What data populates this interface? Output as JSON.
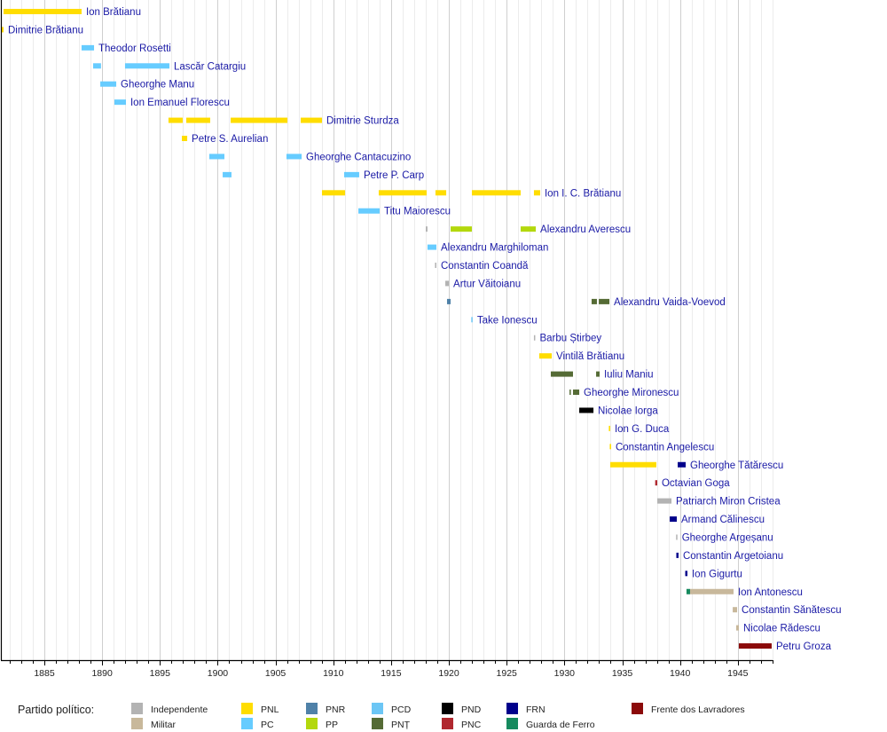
{
  "chart_data": {
    "type": "bar",
    "orientation": "horizontal-timeline",
    "title": "",
    "xlabel": "",
    "ylabel": "",
    "xlim": [
      1881.3,
      1948
    ],
    "xticks": [
      1885,
      1890,
      1895,
      1900,
      1905,
      1910,
      1915,
      1920,
      1925,
      1930,
      1935,
      1940,
      1945
    ],
    "xtick_labels": [
      "1885",
      "1890",
      "1895",
      "1900",
      "1905",
      "1910",
      "1915",
      "1920",
      "1925",
      "1930",
      "1935",
      "1940",
      "1945"
    ],
    "minor_ticks_every_years": 1,
    "grid": true,
    "label_color": "#1a1aa6",
    "legend": {
      "placement": "bottom",
      "title": "Partido político:",
      "entries": [
        {
          "name": "Independente",
          "color": "#b3b3b3"
        },
        {
          "name": "Militar",
          "color": "#c8b89b"
        },
        {
          "name": "PNL",
          "color": "#ffdd00"
        },
        {
          "name": "PC",
          "color": "#66ccff"
        },
        {
          "name": "PNR",
          "color": "#4f81a8"
        },
        {
          "name": "PP",
          "color": "#b3d80d"
        },
        {
          "name": "PCD",
          "color": "#6cc6f5"
        },
        {
          "name": "PNȚ",
          "color": "#556b35"
        },
        {
          "name": "PND",
          "color": "#000000"
        },
        {
          "name": "PNC",
          "color": "#b0282f"
        },
        {
          "name": "FRN",
          "color": "#00008b"
        },
        {
          "name": "Guarda de Ferro",
          "color": "#168a5e"
        },
        {
          "name": "Frente dos Lavradores",
          "color": "#8b0a0a"
        }
      ]
    },
    "rows": [
      {
        "name": "Ion Brătianu",
        "terms": [
          {
            "start": 1881.47,
            "end": 1888.22,
            "party": "PNL"
          }
        ]
      },
      {
        "name": "Dimitrie Brătianu",
        "terms": [
          {
            "start": 1881.3,
            "end": 1881.47,
            "party": "PNL"
          }
        ]
      },
      {
        "name": "Theodor Rosetti",
        "terms": [
          {
            "start": 1888.22,
            "end": 1889.3,
            "party": "PC"
          }
        ]
      },
      {
        "name": "Lascăr Catargiu",
        "terms": [
          {
            "start": 1889.22,
            "end": 1889.9,
            "party": "PC"
          },
          {
            "start": 1891.98,
            "end": 1895.82,
            "party": "PC"
          }
        ]
      },
      {
        "name": "Gheorghe Manu",
        "terms": [
          {
            "start": 1889.84,
            "end": 1891.22,
            "party": "PC"
          }
        ]
      },
      {
        "name": "Ion Emanuel Florescu",
        "terms": [
          {
            "start": 1891.06,
            "end": 1892.06,
            "party": "PC"
          }
        ]
      },
      {
        "name": "Dimitrie Sturdza",
        "terms": [
          {
            "start": 1895.74,
            "end": 1896.97,
            "party": "PNL"
          },
          {
            "start": 1897.28,
            "end": 1899.35,
            "party": "PNL"
          },
          {
            "start": 1901.12,
            "end": 1906.03,
            "party": "PNL"
          },
          {
            "start": 1907.18,
            "end": 1909.02,
            "party": "PNL"
          }
        ]
      },
      {
        "name": "Petre S. Aurelian",
        "terms": [
          {
            "start": 1896.9,
            "end": 1897.36,
            "party": "PNL"
          }
        ]
      },
      {
        "name": "Gheorghe Cantacuzino",
        "terms": [
          {
            "start": 1899.27,
            "end": 1900.58,
            "party": "PC"
          },
          {
            "start": 1905.95,
            "end": 1907.26,
            "party": "PC"
          }
        ]
      },
      {
        "name": "Petre P. Carp",
        "terms": [
          {
            "start": 1900.43,
            "end": 1901.19,
            "party": "PC"
          },
          {
            "start": 1910.94,
            "end": 1912.24,
            "party": "PC"
          }
        ]
      },
      {
        "name": "Ion I. C. Brătianu",
        "terms": [
          {
            "start": 1909.02,
            "end": 1911.02,
            "party": "PNL"
          },
          {
            "start": 1913.93,
            "end": 1918.08,
            "party": "PNL"
          },
          {
            "start": 1918.84,
            "end": 1919.77,
            "party": "PNL"
          },
          {
            "start": 1921.99,
            "end": 1926.21,
            "party": "PNL"
          },
          {
            "start": 1927.36,
            "end": 1927.9,
            "party": "PNL"
          }
        ]
      },
      {
        "name": "Titu Maiorescu",
        "terms": [
          {
            "start": 1912.17,
            "end": 1914.01,
            "party": "PC"
          }
        ]
      },
      {
        "name": "Alexandru Averescu",
        "terms": [
          {
            "start": 1918.0,
            "end": 1918.15,
            "party": "Independente"
          },
          {
            "start": 1920.15,
            "end": 1921.99,
            "party": "PP"
          },
          {
            "start": 1926.21,
            "end": 1927.52,
            "party": "PP"
          }
        ]
      },
      {
        "name": "Alexandru Marghiloman",
        "terms": [
          {
            "start": 1918.15,
            "end": 1918.92,
            "party": "PC"
          }
        ]
      },
      {
        "name": "Constantin Coandă",
        "terms": [
          {
            "start": 1918.8,
            "end": 1918.92,
            "party": "Independente"
          }
        ]
      },
      {
        "name": "Artur Văitoianu",
        "terms": [
          {
            "start": 1919.69,
            "end": 1920.0,
            "party": "Independente"
          }
        ]
      },
      {
        "name": "Alexandru Vaida-Voevod",
        "terms": [
          {
            "start": 1919.84,
            "end": 1920.15,
            "party": "PNR"
          },
          {
            "start": 1932.35,
            "end": 1932.81,
            "party": "PNȚ"
          },
          {
            "start": 1932.97,
            "end": 1933.89,
            "party": "PNȚ"
          }
        ]
      },
      {
        "name": "Take Ionescu",
        "terms": [
          {
            "start": 1921.94,
            "end": 1922.05,
            "party": "PCD"
          }
        ]
      },
      {
        "name": "Barbu Știrbey",
        "terms": [
          {
            "start": 1927.36,
            "end": 1927.44,
            "party": "Independente"
          }
        ]
      },
      {
        "name": "Vintilă Brătianu",
        "terms": [
          {
            "start": 1927.82,
            "end": 1928.9,
            "party": "PNL"
          }
        ]
      },
      {
        "name": "Iuliu Maniu",
        "terms": [
          {
            "start": 1928.82,
            "end": 1930.74,
            "party": "PNȚ"
          },
          {
            "start": 1932.74,
            "end": 1933.04,
            "party": "PNȚ"
          }
        ]
      },
      {
        "name": "Gheorghe Mironescu",
        "terms": [
          {
            "start": 1930.44,
            "end": 1930.51,
            "party": "PNȚ"
          },
          {
            "start": 1930.74,
            "end": 1931.28,
            "party": "PNȚ"
          }
        ]
      },
      {
        "name": "Nicolae Iorga",
        "terms": [
          {
            "start": 1931.28,
            "end": 1932.51,
            "party": "PND"
          }
        ]
      },
      {
        "name": "Ion G. Duca",
        "terms": [
          {
            "start": 1933.84,
            "end": 1933.96,
            "party": "PNL"
          }
        ]
      },
      {
        "name": "Constantin Angelescu",
        "terms": [
          {
            "start": 1933.92,
            "end": 1934.04,
            "party": "PNL"
          }
        ]
      },
      {
        "name": "Gheorghe Tătărescu",
        "terms": [
          {
            "start": 1933.96,
            "end": 1937.95,
            "party": "PNL"
          },
          {
            "start": 1939.8,
            "end": 1940.49,
            "party": "FRN"
          }
        ]
      },
      {
        "name": "Octavian Goga",
        "terms": [
          {
            "start": 1937.85,
            "end": 1938.03,
            "party": "PNC"
          }
        ]
      },
      {
        "name": "Patriarch Miron Cristea",
        "terms": [
          {
            "start": 1938.03,
            "end": 1939.26,
            "party": "Independente"
          }
        ]
      },
      {
        "name": "Armand Călinescu",
        "terms": [
          {
            "start": 1939.11,
            "end": 1939.72,
            "party": "FRN"
          }
        ]
      },
      {
        "name": "Gheorghe Argeșanu",
        "terms": [
          {
            "start": 1939.66,
            "end": 1939.72,
            "party": "Independente"
          }
        ]
      },
      {
        "name": "Constantin Argetoianu",
        "terms": [
          {
            "start": 1939.68,
            "end": 1939.87,
            "party": "FRN"
          }
        ]
      },
      {
        "name": "Ion Gigurtu",
        "terms": [
          {
            "start": 1940.45,
            "end": 1940.64,
            "party": "FRN"
          }
        ]
      },
      {
        "name": "Ion Antonescu",
        "terms": [
          {
            "start": 1940.56,
            "end": 1940.87,
            "party": "Guarda de Ferro"
          },
          {
            "start": 1940.87,
            "end": 1944.63,
            "party": "Militar"
          }
        ]
      },
      {
        "name": "Constantin Sănătescu",
        "terms": [
          {
            "start": 1944.56,
            "end": 1944.94,
            "party": "Militar"
          }
        ]
      },
      {
        "name": "Nicolae Rădescu",
        "terms": [
          {
            "start": 1944.86,
            "end": 1945.09,
            "party": "Militar"
          }
        ]
      },
      {
        "name": "Petru Groza",
        "terms": [
          {
            "start": 1945.09,
            "end": 1947.93,
            "party": "Frente dos Lavradores"
          }
        ]
      }
    ]
  }
}
